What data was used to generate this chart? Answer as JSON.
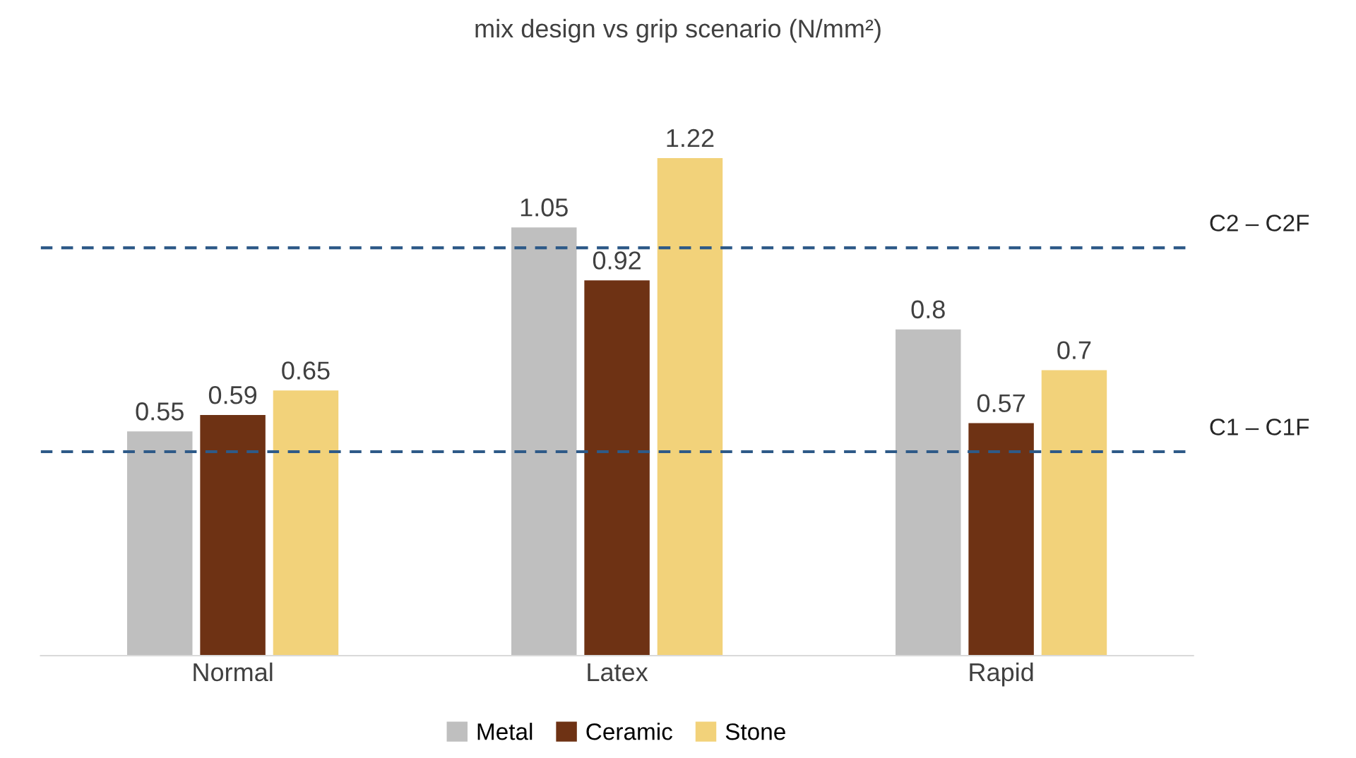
{
  "chart_data": {
    "type": "bar",
    "title": "mix design vs grip scenario (N/mm²)",
    "categories": [
      "Normal",
      "Latex",
      "Rapid"
    ],
    "series": [
      {
        "name": "Metal",
        "color": "#bfbfbf",
        "values": [
          0.55,
          1.05,
          0.8
        ]
      },
      {
        "name": "Ceramic",
        "color": "#6e3214",
        "values": [
          0.59,
          0.92,
          0.57
        ]
      },
      {
        "name": "Stone",
        "color": "#f2d27a",
        "values": [
          0.65,
          1.22,
          0.7
        ]
      }
    ],
    "ref_lines": [
      {
        "axis": "y",
        "value": 0.5,
        "label": "C1 – C1F",
        "color": "#2e5a88",
        "line_style": "dashed"
      },
      {
        "axis": "y",
        "value": 1.0,
        "label": "C2 – C2F",
        "color": "#2e5a88",
        "line_style": "dashed"
      }
    ],
    "data_labels": true,
    "legend": "bottom",
    "grid": false,
    "tick_labels": "x"
  }
}
